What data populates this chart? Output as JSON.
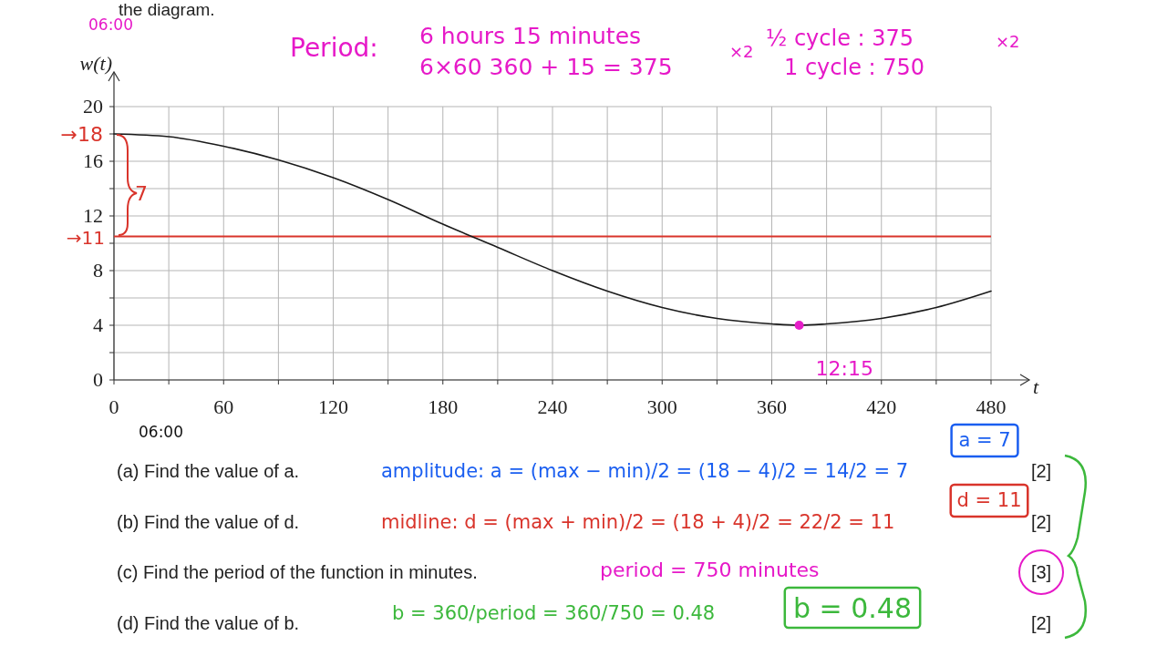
{
  "chart_data": {
    "type": "line",
    "xlabel": "t",
    "ylabel": "w(t)",
    "xlim": [
      0,
      480
    ],
    "ylim": [
      0,
      20
    ],
    "xticks": [
      0,
      {
        "value": 30,
        "label": null
      },
      60,
      {
        "value": 90,
        "label": null
      },
      120,
      {
        "value": 150,
        "label": null
      },
      180,
      {
        "value": 210,
        "label": null
      },
      240,
      {
        "value": 270,
        "label": null
      },
      300,
      {
        "value": 330,
        "label": null
      },
      360,
      {
        "value": 390,
        "label": null
      },
      420,
      {
        "value": 450,
        "label": null
      },
      480
    ],
    "yticks": [
      0,
      {
        "value": 2,
        "label": null
      },
      4,
      {
        "value": 6,
        "label": null
      },
      8,
      {
        "value": 10,
        "label": null
      },
      12,
      {
        "value": 14,
        "label": null
      },
      16,
      {
        "value": 18,
        "label": null
      },
      20
    ],
    "grid": true,
    "series": [
      {
        "color": "#1a1a1a",
        "x": [
          0,
          30,
          60,
          90,
          120,
          150,
          180,
          210,
          240,
          270,
          300,
          330,
          360,
          375,
          390,
          420,
          450,
          480
        ],
        "values": [
          18,
          17.8,
          17.1,
          16.1,
          14.8,
          13.2,
          11.4,
          9.7,
          8.0,
          6.5,
          5.3,
          4.5,
          4.1,
          4,
          4.1,
          4.5,
          5.3,
          6.5
        ]
      },
      {
        "type": "scatter",
        "color": "#e61ec8",
        "marker": "circle",
        "x": [
          375
        ],
        "values": [
          4
        ]
      }
    ],
    "ref_lines": [
      {
        "axis": "y",
        "value": 10.5,
        "label": "→11",
        "color": "#d9342b"
      }
    ],
    "annotations": [
      "the diagram.",
      "06:00",
      "Period:",
      "6 hours  15 minutes",
      "6×60  360 + 15 = 375",
      "×2",
      "½ cycle : 375",
      "1 cycle : 750",
      "×2",
      {
        "text": "→18",
        "x": 0,
        "y": 18
      },
      "7",
      {
        "text": "12:15",
        "x": 375,
        "y": 4
      },
      "06:00",
      "(a)    Find the value of a.",
      "(b)    Find the value of d.",
      "(c)    Find the period of the function in minutes.",
      "(d)    Find the value of b.",
      "[2]",
      "[2]",
      "[3]",
      "[2]",
      "amplitude:  a = (max − min)/2 = (18 − 4)/2 = 14/2 = 7",
      "a = 7",
      "midline:  d = (max + min)/2 = (18 + 4)/2 = 22/2 = 11",
      "d = 11",
      "period = 750 minutes",
      "b = 360/period = 360/750 = 0.48",
      "b = 0.48"
    ]
  }
}
